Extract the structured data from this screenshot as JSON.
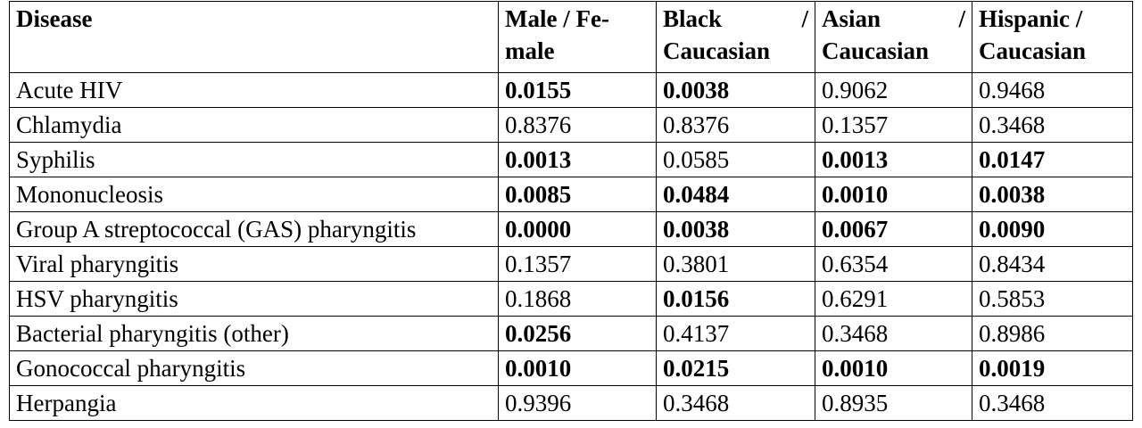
{
  "table": {
    "headers": [
      {
        "lines": [
          "Disease"
        ]
      },
      {
        "lines": [
          "Male / Fe-",
          "male"
        ]
      },
      {
        "lines": [
          "Black /",
          "Caucasian"
        ]
      },
      {
        "lines": [
          "Asian /",
          "Caucasian"
        ]
      },
      {
        "lines": [
          "Hispanic /",
          "Caucasian"
        ]
      }
    ],
    "rows": [
      {
        "disease": "Acute HIV",
        "values": [
          "0.0155",
          "0.0038",
          "0.9062",
          "0.9468"
        ],
        "bold": [
          true,
          true,
          false,
          false
        ]
      },
      {
        "disease": "Chlamydia",
        "values": [
          "0.8376",
          "0.8376",
          "0.1357",
          "0.3468"
        ],
        "bold": [
          false,
          false,
          false,
          false
        ]
      },
      {
        "disease": "Syphilis",
        "values": [
          "0.0013",
          "0.0585",
          "0.0013",
          "0.0147"
        ],
        "bold": [
          true,
          false,
          true,
          true
        ]
      },
      {
        "disease": "Mononucleosis",
        "values": [
          "0.0085",
          "0.0484",
          "0.0010",
          "0.0038"
        ],
        "bold": [
          true,
          true,
          true,
          true
        ]
      },
      {
        "disease": "Group A streptococcal (GAS) pharyngitis",
        "values": [
          "0.0000",
          "0.0038",
          "0.0067",
          "0.0090"
        ],
        "bold": [
          true,
          true,
          true,
          true
        ]
      },
      {
        "disease": "Viral pharyngitis",
        "values": [
          "0.1357",
          "0.3801",
          "0.6354",
          "0.8434"
        ],
        "bold": [
          false,
          false,
          false,
          false
        ]
      },
      {
        "disease": "HSV pharyngitis",
        "values": [
          "0.1868",
          "0.0156",
          "0.6291",
          "0.5853"
        ],
        "bold": [
          false,
          true,
          false,
          false
        ]
      },
      {
        "disease": "Bacterial pharyngitis (other)",
        "values": [
          "0.0256",
          "0.4137",
          "0.3468",
          "0.8986"
        ],
        "bold": [
          true,
          false,
          false,
          false
        ]
      },
      {
        "disease": "Gonococcal pharyngitis",
        "values": [
          "0.0010",
          "0.0215",
          "0.0010",
          "0.0019"
        ],
        "bold": [
          true,
          true,
          true,
          true
        ]
      },
      {
        "disease": "Herpangia",
        "values": [
          "0.9396",
          "0.3468",
          "0.8935",
          "0.3468"
        ],
        "bold": [
          false,
          false,
          false,
          false
        ]
      }
    ]
  }
}
